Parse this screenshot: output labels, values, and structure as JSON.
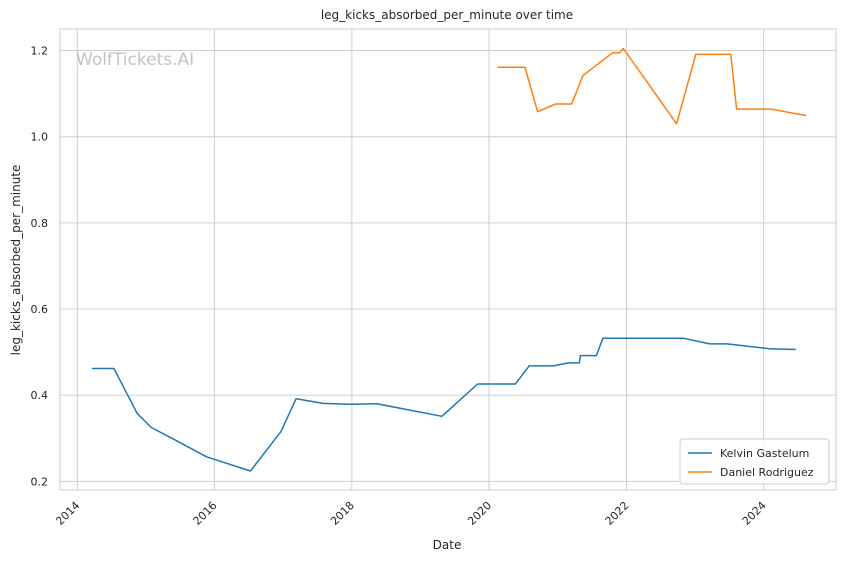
{
  "chart_data": {
    "type": "line",
    "title": "leg_kicks_absorbed_per_minute over time",
    "xlabel": "Date",
    "ylabel": "leg_kicks_absorbed_per_minute",
    "watermark": "WolfTickets.AI",
    "xlim": [
      "2013-10-01",
      "2025-01-20"
    ],
    "ylim": [
      0.18,
      1.25
    ],
    "x_ticks": [
      "2014",
      "2016",
      "2018",
      "2020",
      "2022",
      "2024"
    ],
    "y_ticks": [
      "0.2",
      "0.4",
      "0.6",
      "0.8",
      "1.0",
      "1.2"
    ],
    "grid": true,
    "legend_position": "lower-right",
    "series": [
      {
        "name": "Kelvin Gastelum",
        "color": "#1f77b4",
        "points": [
          [
            "2014-03-20",
            0.462
          ],
          [
            "2014-07-15",
            0.462
          ],
          [
            "2014-11-15",
            0.358
          ],
          [
            "2015-01-30",
            0.325
          ],
          [
            "2015-06-01",
            0.297
          ],
          [
            "2015-11-20",
            0.257
          ],
          [
            "2016-07-10",
            0.224
          ],
          [
            "2016-12-20",
            0.316
          ],
          [
            "2017-03-10",
            0.392
          ],
          [
            "2017-08-01",
            0.381
          ],
          [
            "2017-12-20",
            0.379
          ],
          [
            "2018-05-15",
            0.38
          ],
          [
            "2019-04-25",
            0.351
          ],
          [
            "2019-11-01",
            0.426
          ],
          [
            "2020-05-20",
            0.426
          ],
          [
            "2020-08-01",
            0.468
          ],
          [
            "2020-12-10",
            0.468
          ],
          [
            "2021-02-25",
            0.475
          ],
          [
            "2021-04-25",
            0.475
          ],
          [
            "2021-05-01",
            0.492
          ],
          [
            "2021-07-25",
            0.492
          ],
          [
            "2021-08-28",
            0.532
          ],
          [
            "2022-11-01",
            0.532
          ],
          [
            "2023-03-20",
            0.519
          ],
          [
            "2023-06-20",
            0.519
          ],
          [
            "2024-02-01",
            0.508
          ],
          [
            "2024-06-20",
            0.506
          ]
        ]
      },
      {
        "name": "Daniel Rodriguez",
        "color": "#ff7f0e",
        "points": [
          [
            "2020-02-15",
            1.161
          ],
          [
            "2020-07-10",
            1.161
          ],
          [
            "2020-09-15",
            1.058
          ],
          [
            "2020-12-20",
            1.076
          ],
          [
            "2021-03-15",
            1.076
          ],
          [
            "2021-05-15",
            1.142
          ],
          [
            "2021-10-20",
            1.195
          ],
          [
            "2021-11-25",
            1.195
          ],
          [
            "2021-12-15",
            1.205
          ],
          [
            "2022-09-25",
            1.03
          ],
          [
            "2023-01-05",
            1.191
          ],
          [
            "2023-07-10",
            1.191
          ],
          [
            "2023-08-10",
            1.064
          ],
          [
            "2024-02-10",
            1.064
          ],
          [
            "2024-08-15",
            1.049
          ]
        ]
      }
    ]
  }
}
